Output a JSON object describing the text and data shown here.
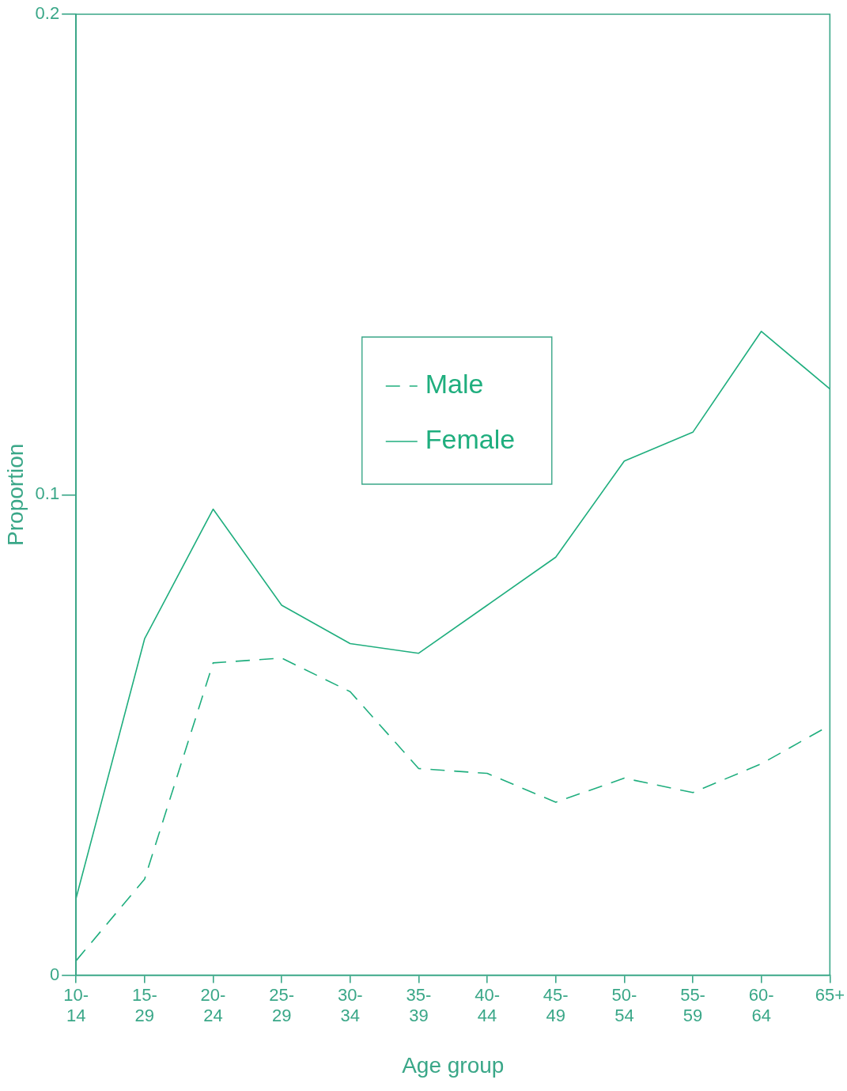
{
  "chart_data": {
    "type": "line",
    "xlabel": "Age group",
    "ylabel": "Proportion",
    "categories": [
      "10-14",
      "15-29",
      "20-24",
      "25-29",
      "30-34",
      "35-39",
      "40-44",
      "45-49",
      "50-54",
      "55-59",
      "60-64",
      "65+"
    ],
    "series": [
      {
        "name": "Male",
        "color": "#1fae7e",
        "line_style": "dashed",
        "values": [
          0.003,
          0.02,
          0.065,
          0.066,
          0.059,
          0.043,
          0.042,
          0.036,
          0.041,
          0.038,
          0.044,
          0.052
        ]
      },
      {
        "name": "Female",
        "color": "#1fae7e",
        "line_style": "solid",
        "values": [
          0.016,
          0.07,
          0.097,
          0.077,
          0.069,
          0.067,
          0.077,
          0.087,
          0.107,
          0.113,
          0.134,
          0.122
        ]
      }
    ],
    "ylim": [
      0,
      0.2
    ],
    "yticks": [
      0,
      0.1,
      0.2
    ],
    "grid": false,
    "legend": "top",
    "marker": "none"
  }
}
